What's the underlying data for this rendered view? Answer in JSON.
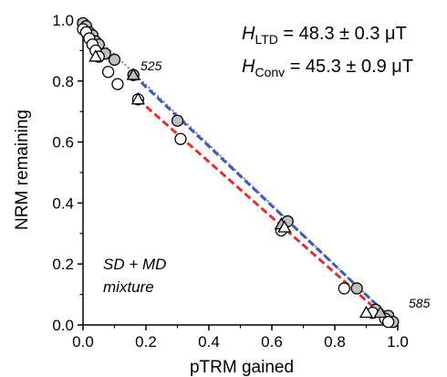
{
  "chart_data": {
    "type": "scatter",
    "title": "",
    "xlabel": "pTRM gained",
    "ylabel": "NRM remaining",
    "xlim": [
      0.0,
      1.0
    ],
    "ylim": [
      0.0,
      1.0
    ],
    "xticks": [
      "0.0",
      "0.2",
      "0.4",
      "0.6",
      "0.8",
      "1.0"
    ],
    "yticks": [
      "0.0",
      "0.2",
      "0.4",
      "0.6",
      "0.8",
      "1.0"
    ],
    "grid": false,
    "legend": "none",
    "annotations": {
      "h_ltd": {
        "symbol": "H",
        "subscript": "LTD",
        "value": " = 48.3 ± 0.3 μT"
      },
      "h_conv": {
        "symbol": "H",
        "subscript": "Conv",
        "value": " = 45.3 ± 0.9 μT"
      },
      "label_525": "525",
      "label_585": "585",
      "note_line1": "SD + MD",
      "note_line2": "mixture"
    },
    "lines": [
      {
        "style": "dotted",
        "color": "#888888",
        "x": [
          0.0,
          1.0
        ],
        "y": [
          0.985,
          0.0
        ]
      },
      {
        "style": "dashed",
        "color": "#3b5bb5",
        "x": [
          0.16,
          0.97
        ],
        "y": [
          0.82,
          0.03
        ]
      },
      {
        "style": "dashed",
        "color": "#e03030",
        "x": [
          0.175,
          0.955
        ],
        "y": [
          0.74,
          0.03
        ]
      }
    ],
    "series": [
      {
        "marker": "circle-filled",
        "color": "#bfbfbf",
        "x": [
          0.0,
          0.01,
          0.02,
          0.03,
          0.04,
          0.05,
          0.07,
          0.1,
          0.16,
          0.3,
          0.65,
          0.87,
          0.93,
          0.97,
          0.985
        ],
        "y": [
          0.99,
          0.98,
          0.96,
          0.95,
          0.93,
          0.92,
          0.89,
          0.87,
          0.82,
          0.67,
          0.34,
          0.12,
          0.05,
          0.03,
          0.01
        ]
      },
      {
        "marker": "circle-open",
        "color": "#ffffff",
        "x": [
          0.0,
          0.01,
          0.02,
          0.03,
          0.04,
          0.05,
          0.08,
          0.11,
          0.175,
          0.31,
          0.63,
          0.83,
          0.92,
          0.96,
          0.97
        ],
        "y": [
          0.97,
          0.96,
          0.94,
          0.92,
          0.9,
          0.88,
          0.83,
          0.79,
          0.74,
          0.61,
          0.31,
          0.12,
          0.04,
          0.02,
          0.01
        ]
      },
      {
        "marker": "triangle-filled",
        "color": "#bfbfbf",
        "x": [
          0.16,
          0.63,
          0.945
        ],
        "y": [
          0.82,
          0.33,
          0.04
        ]
      },
      {
        "marker": "triangle-open",
        "color": "#ffffff",
        "x": [
          0.04,
          0.175,
          0.64,
          0.9
        ],
        "y": [
          0.88,
          0.74,
          0.32,
          0.04
        ]
      }
    ]
  }
}
